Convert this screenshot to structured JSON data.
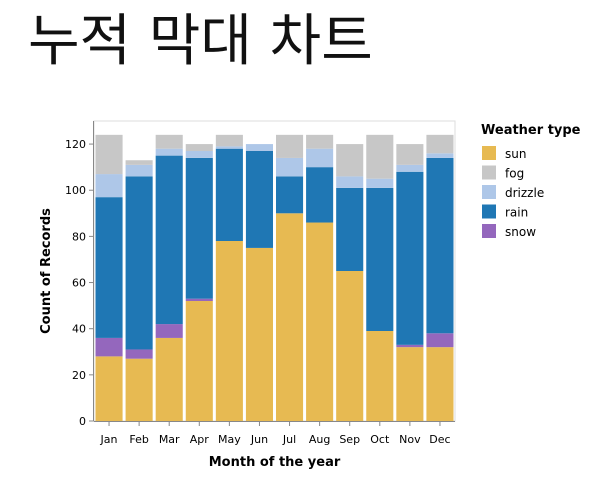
{
  "chart_data": {
    "type": "bar",
    "stacked": true,
    "title": "누적 막대 차트",
    "xlabel": "Month of the year",
    "ylabel": "Count of Records",
    "ylim": [
      0,
      130
    ],
    "yticks": [
      0,
      20,
      40,
      60,
      80,
      100,
      120
    ],
    "grid": false,
    "legend_position": "right",
    "legend_title": "Weather type",
    "categories": [
      "Jan",
      "Feb",
      "Mar",
      "Apr",
      "May",
      "Jun",
      "Jul",
      "Aug",
      "Sep",
      "Oct",
      "Nov",
      "Dec"
    ],
    "series": [
      {
        "name": "sun",
        "color": "#e7ba52",
        "values": [
          28,
          27,
          36,
          52,
          78,
          75,
          90,
          86,
          65,
          39,
          32,
          32
        ]
      },
      {
        "name": "snow",
        "color": "#9467bd",
        "values": [
          8,
          4,
          6,
          1,
          0,
          0,
          0,
          0,
          0,
          0,
          1,
          6
        ]
      },
      {
        "name": "rain",
        "color": "#1f77b4",
        "values": [
          61,
          75,
          73,
          61,
          40,
          42,
          16,
          24,
          36,
          62,
          75,
          76
        ]
      },
      {
        "name": "drizzle",
        "color": "#aec7e8",
        "values": [
          10,
          5,
          3,
          3,
          1,
          3,
          8,
          8,
          5,
          4,
          3,
          2
        ]
      },
      {
        "name": "fog",
        "color": "#c7c7c7",
        "values": [
          17,
          2,
          6,
          3,
          5,
          0,
          10,
          6,
          14,
          19,
          9,
          8
        ]
      }
    ],
    "legend_order": [
      "sun",
      "fog",
      "drizzle",
      "rain",
      "snow"
    ]
  }
}
